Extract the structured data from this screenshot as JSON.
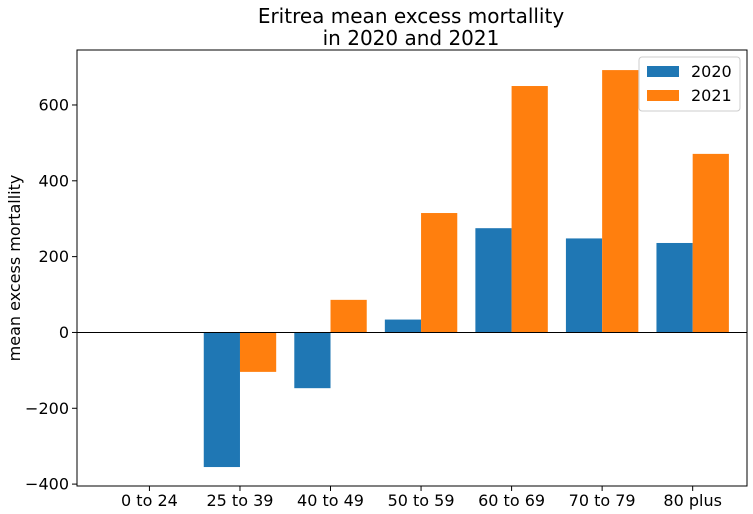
{
  "chart_data": {
    "type": "bar",
    "title_line1": "Eritrea mean excess mortallity",
    "title_line2": "in 2020 and 2021",
    "xlabel": "",
    "ylabel": "mean excess mortallity",
    "categories": [
      "0 to 24",
      "25 to 39",
      "40 to 49",
      "50 to 59",
      "60 to 69",
      "70 to 79",
      "80 plus"
    ],
    "series": [
      {
        "name": "2020",
        "color": "#1f77b4",
        "values": [
          0,
          -355,
          -147,
          34,
          275,
          248,
          236
        ]
      },
      {
        "name": "2021",
        "color": "#ff7f0e",
        "values": [
          0,
          -104,
          86,
          315,
          650,
          692,
          471
        ]
      }
    ],
    "ylim": [
      -405,
      745
    ],
    "yticks": [
      -400,
      -200,
      0,
      200,
      400,
      600
    ],
    "ytick_labels": [
      "−400",
      "−200",
      "0",
      "200",
      "400",
      "600"
    ],
    "zero_line": true,
    "grid": false,
    "legend_position": "top-right"
  }
}
